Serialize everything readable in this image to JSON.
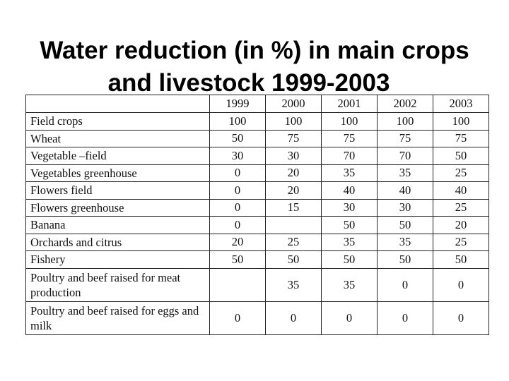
{
  "title": {
    "line1": "Water reduction (in %) in main crops",
    "line2": "and livestock  1999-2003"
  },
  "table": {
    "corner": "",
    "years": [
      "1999",
      "2000",
      "2001",
      "2002",
      "2003"
    ],
    "rows": [
      {
        "crop": "Field crops",
        "values": [
          "100",
          "100",
          "100",
          "100",
          "100"
        ]
      },
      {
        "crop": "Wheat",
        "values": [
          "50",
          "75",
          "75",
          "75",
          "75"
        ]
      },
      {
        "crop": "Vegetable –field",
        "values": [
          "30",
          "30",
          "70",
          "70",
          "50"
        ]
      },
      {
        "crop": "Vegetables greenhouse",
        "values": [
          "0",
          "20",
          "35",
          "35",
          "25"
        ]
      },
      {
        "crop": "Flowers field",
        "values": [
          "0",
          "20",
          "40",
          "40",
          "40"
        ]
      },
      {
        "crop": "Flowers greenhouse",
        "values": [
          "0",
          "15",
          "30",
          "30",
          "25"
        ]
      },
      {
        "crop": "Banana",
        "values": [
          "0",
          "",
          "50",
          "50",
          "20"
        ]
      },
      {
        "crop": "Orchards and citrus",
        "values": [
          "20",
          "25",
          "35",
          "35",
          "25"
        ]
      },
      {
        "crop": "Fishery",
        "values": [
          "50",
          "50",
          "50",
          "50",
          "50"
        ]
      },
      {
        "crop": "Poultry and beef  raised for meat production",
        "values": [
          "",
          "35",
          "35",
          "0",
          "0"
        ]
      },
      {
        "crop": "Poultry and beef raised for eggs and milk",
        "values": [
          "0",
          "0",
          "0",
          "0",
          "0"
        ]
      }
    ]
  }
}
